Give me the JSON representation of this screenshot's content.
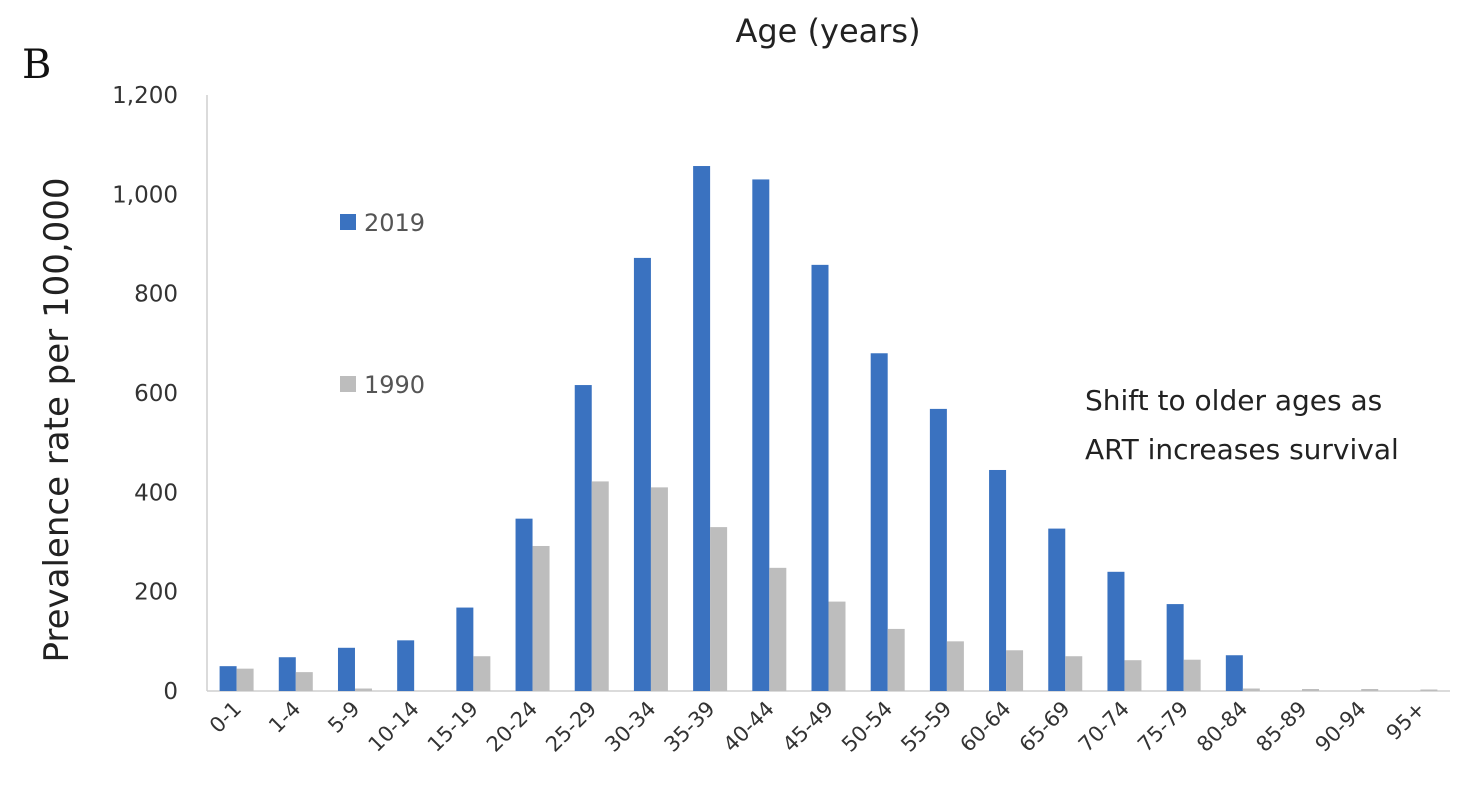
{
  "panel_label": "B",
  "chart_data": {
    "type": "bar",
    "title": "Age (years)",
    "xlabel": "",
    "ylabel": "Prevalence rate per 100,000",
    "ylim": [
      0,
      1200
    ],
    "yticks": [
      0,
      200,
      400,
      600,
      800,
      1000,
      1200
    ],
    "ytick_labels": [
      "0",
      "200",
      "400",
      "600",
      "800",
      "1,000",
      "1,200"
    ],
    "grid": false,
    "legend_position": "left",
    "categories": [
      "0-1",
      "1-4",
      "5-9",
      "10-14",
      "15-19",
      "20-24",
      "25-29",
      "30-34",
      "35-39",
      "40-44",
      "45-49",
      "50-54",
      "55-59",
      "60-64",
      "65-69",
      "70-74",
      "75-79",
      "80-84",
      "85-89",
      "90-94",
      "95+"
    ],
    "series": [
      {
        "name": "2019",
        "color": "#3a72c0",
        "values": [
          50,
          68,
          87,
          102,
          168,
          347,
          616,
          872,
          1057,
          1030,
          858,
          680,
          568,
          445,
          327,
          240,
          175,
          72,
          0,
          0,
          0
        ]
      },
      {
        "name": "1990",
        "color": "#bdbdbd",
        "values": [
          45,
          38,
          5,
          0,
          70,
          292,
          422,
          410,
          330,
          248,
          180,
          125,
          100,
          82,
          70,
          62,
          63,
          5,
          4,
          4,
          3
        ]
      }
    ],
    "annotation": {
      "lines": [
        "Shift to older ages as",
        "ART increases survival"
      ]
    }
  }
}
